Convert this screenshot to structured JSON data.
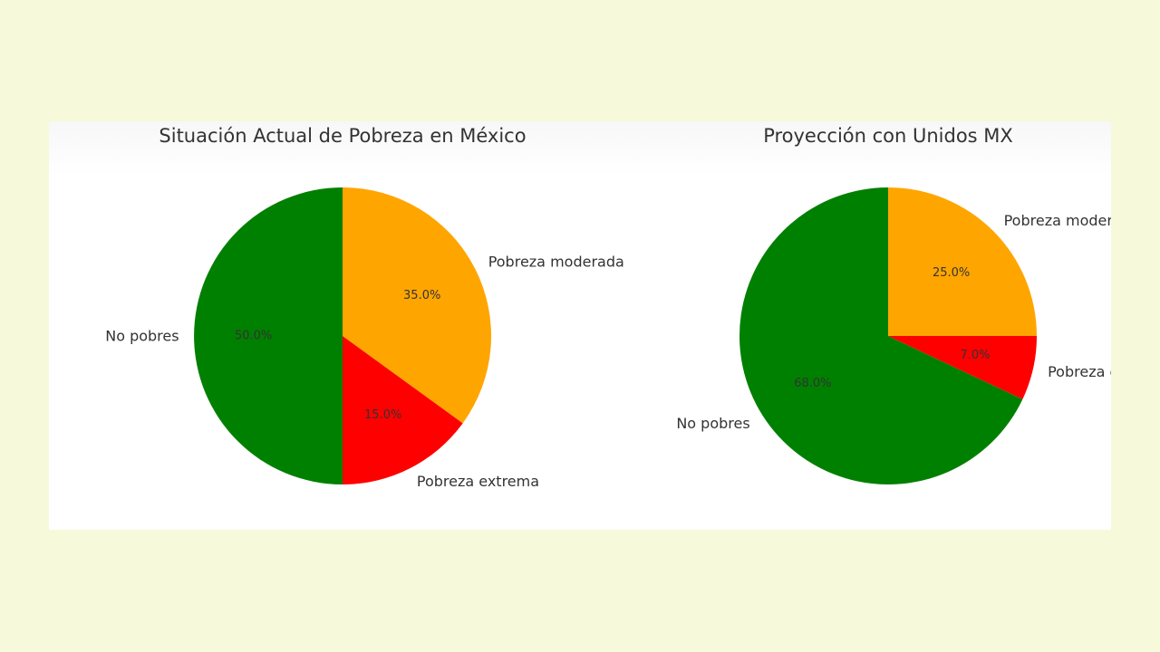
{
  "chart_data": [
    {
      "type": "pie",
      "title": "Situación Actual de Pobreza en México",
      "categories": [
        "No pobres",
        "Pobreza extrema",
        "Pobreza moderada"
      ],
      "values": [
        50.0,
        15.0,
        35.0
      ],
      "value_labels": [
        "50.0%",
        "15.0%",
        "35.0%"
      ],
      "colors": [
        "#008000",
        "#ff0000",
        "#ffa500"
      ],
      "start_angle": 90,
      "direction": "counterclockwise",
      "legend": "none"
    },
    {
      "type": "pie",
      "title": "Proyección con Unidos MX",
      "categories": [
        "No pobres",
        "Pobreza extrema",
        "Pobreza moderada"
      ],
      "values": [
        68.0,
        7.0,
        25.0
      ],
      "value_labels": [
        "68.0%",
        "7.0%",
        "25.0%"
      ],
      "colors": [
        "#008000",
        "#ff0000",
        "#ffa500"
      ],
      "start_angle": 90,
      "direction": "counterclockwise",
      "legend": "none"
    }
  ],
  "colors": {
    "page_background": "#f6f9da",
    "panel_background": "#ffffff"
  }
}
